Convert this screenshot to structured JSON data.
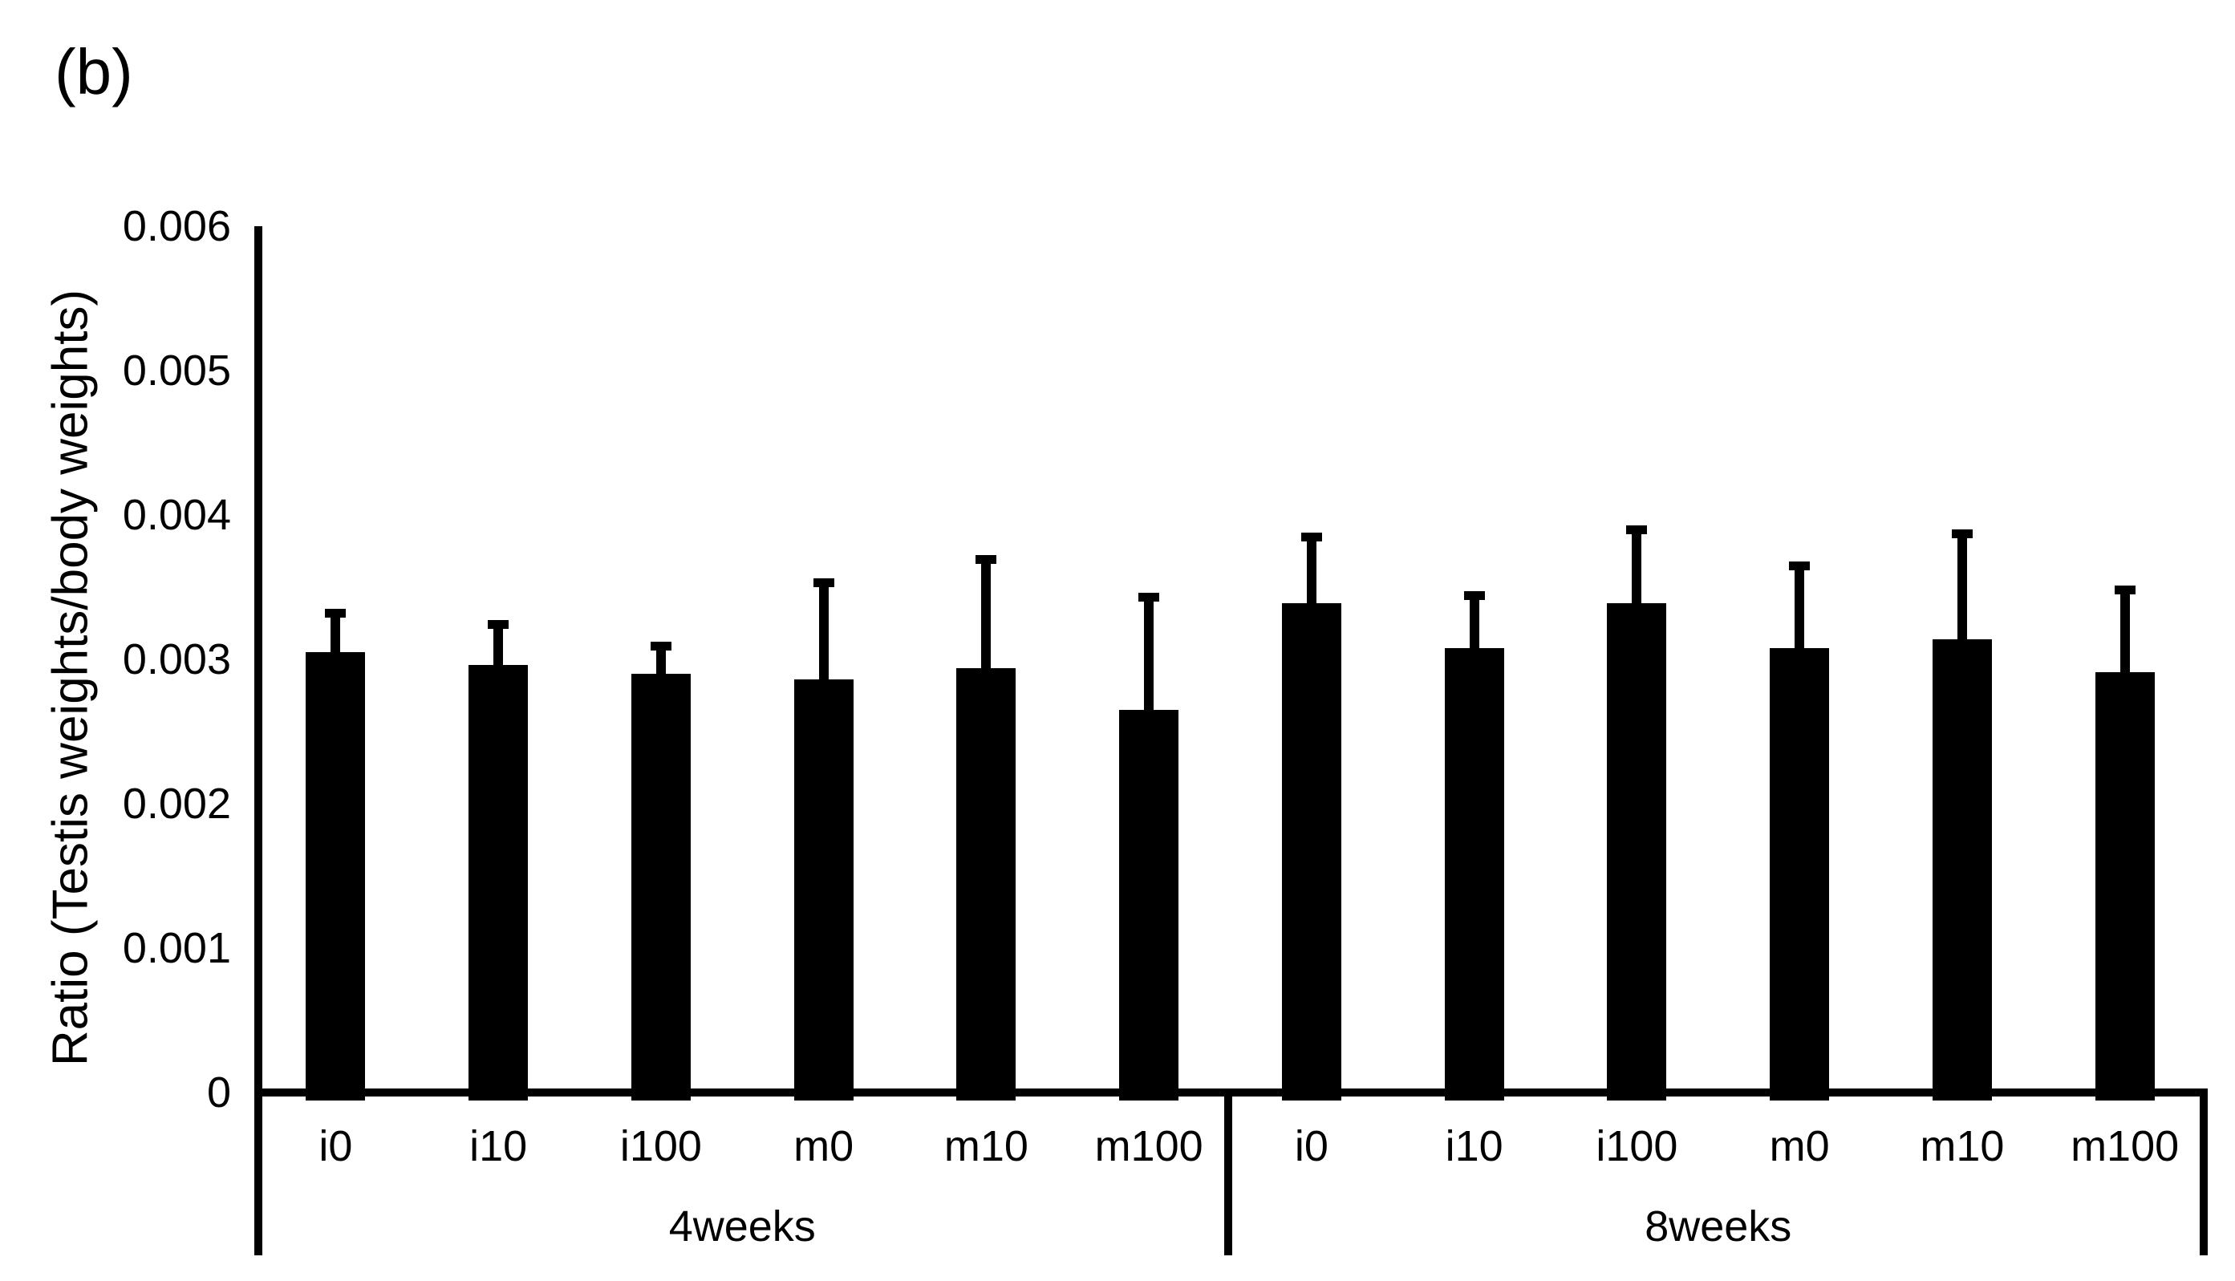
{
  "figure_label": "(b)",
  "colors": {
    "bar": "#000000",
    "axis": "#000000",
    "background": "#ffffff"
  },
  "chart_data": {
    "type": "bar",
    "title": "",
    "xlabel": "",
    "ylabel": "Ratio (Testis weights/body weights)",
    "ylim": [
      0,
      0.006
    ],
    "grid": false,
    "legend": "none",
    "bar_color": "#000000",
    "error_bars": "upper only, capped",
    "yticks": [
      {
        "value": 0,
        "label": "0"
      },
      {
        "value": 0.001,
        "label": "0.001"
      },
      {
        "value": 0.002,
        "label": "0.002"
      },
      {
        "value": 0.003,
        "label": "0.003"
      },
      {
        "value": 0.004,
        "label": "0.004"
      },
      {
        "value": 0.005,
        "label": "0.005"
      },
      {
        "value": 0.006,
        "label": "0.006"
      }
    ],
    "groups": [
      {
        "label": "4weeks",
        "categories": [
          "i0",
          "i10",
          "i100",
          "m0",
          "m10",
          "m100"
        ],
        "values": [
          0.00305,
          0.00296,
          0.0029,
          0.00286,
          0.00294,
          0.00265
        ],
        "errors": [
          0.0003,
          0.00031,
          0.00022,
          0.0007,
          0.00078,
          0.00081
        ]
      },
      {
        "label": "8weeks",
        "categories": [
          "i0",
          "i10",
          "i100",
          "m0",
          "m10",
          "m100"
        ],
        "values": [
          0.00339,
          0.00308,
          0.00339,
          0.00308,
          0.00314,
          0.00291
        ],
        "errors": [
          0.00049,
          0.00039,
          0.00054,
          0.0006,
          0.00076,
          0.0006
        ]
      }
    ]
  }
}
